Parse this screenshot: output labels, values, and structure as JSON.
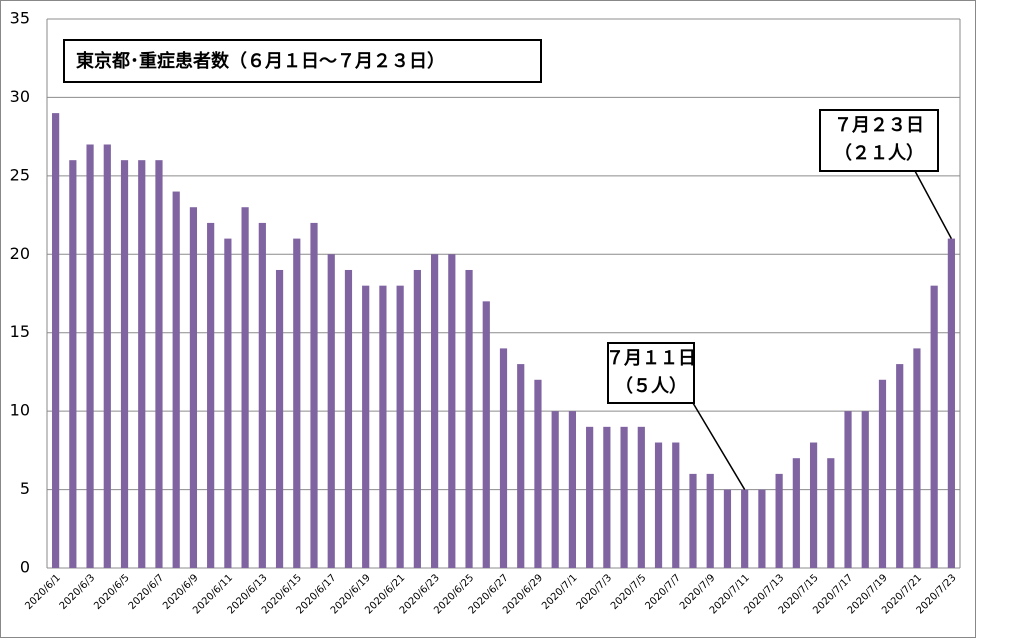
{
  "chart_data": {
    "type": "bar",
    "title": "東京都･重症患者数（６月１日～７月２３日）",
    "categories": [
      "2020/6/1",
      null,
      "2020/6/3",
      null,
      "2020/6/5",
      null,
      "2020/6/7",
      null,
      "2020/6/9",
      null,
      "2020/6/11",
      null,
      "2020/6/13",
      null,
      "2020/6/15",
      null,
      "2020/6/17",
      null,
      "2020/6/19",
      null,
      "2020/6/21",
      null,
      "2020/6/23",
      null,
      "2020/6/25",
      null,
      "2020/6/27",
      null,
      "2020/6/29",
      null,
      "2020/7/1",
      null,
      "2020/7/3",
      null,
      "2020/7/5",
      null,
      "2020/7/7",
      null,
      "2020/7/9",
      null,
      "2020/7/11",
      null,
      "2020/7/13",
      null,
      "2020/7/15",
      null,
      "2020/7/17",
      null,
      "2020/7/19",
      null,
      "2020/7/21",
      null,
      "2020/7/23"
    ],
    "values": [
      29,
      26,
      27,
      27,
      26,
      26,
      26,
      24,
      23,
      22,
      21,
      23,
      22,
      19,
      21,
      22,
      20,
      19,
      18,
      18,
      18,
      19,
      20,
      20,
      19,
      17,
      14,
      13,
      12,
      10,
      10,
      9,
      9,
      9,
      9,
      8,
      8,
      6,
      6,
      5,
      5,
      5,
      6,
      7,
      8,
      7,
      10,
      10,
      12,
      13,
      14,
      18,
      21
    ],
    "color": "#8064a2",
    "ylim": [
      0,
      35
    ],
    "yticks": [
      0,
      5,
      10,
      15,
      20,
      25,
      30,
      35
    ],
    "grid": true,
    "annotations": [
      {
        "lines": [
          "７月１１日",
          "（５人）"
        ]
      },
      {
        "lines": [
          "７月２３日",
          "（２１人）"
        ]
      }
    ]
  }
}
